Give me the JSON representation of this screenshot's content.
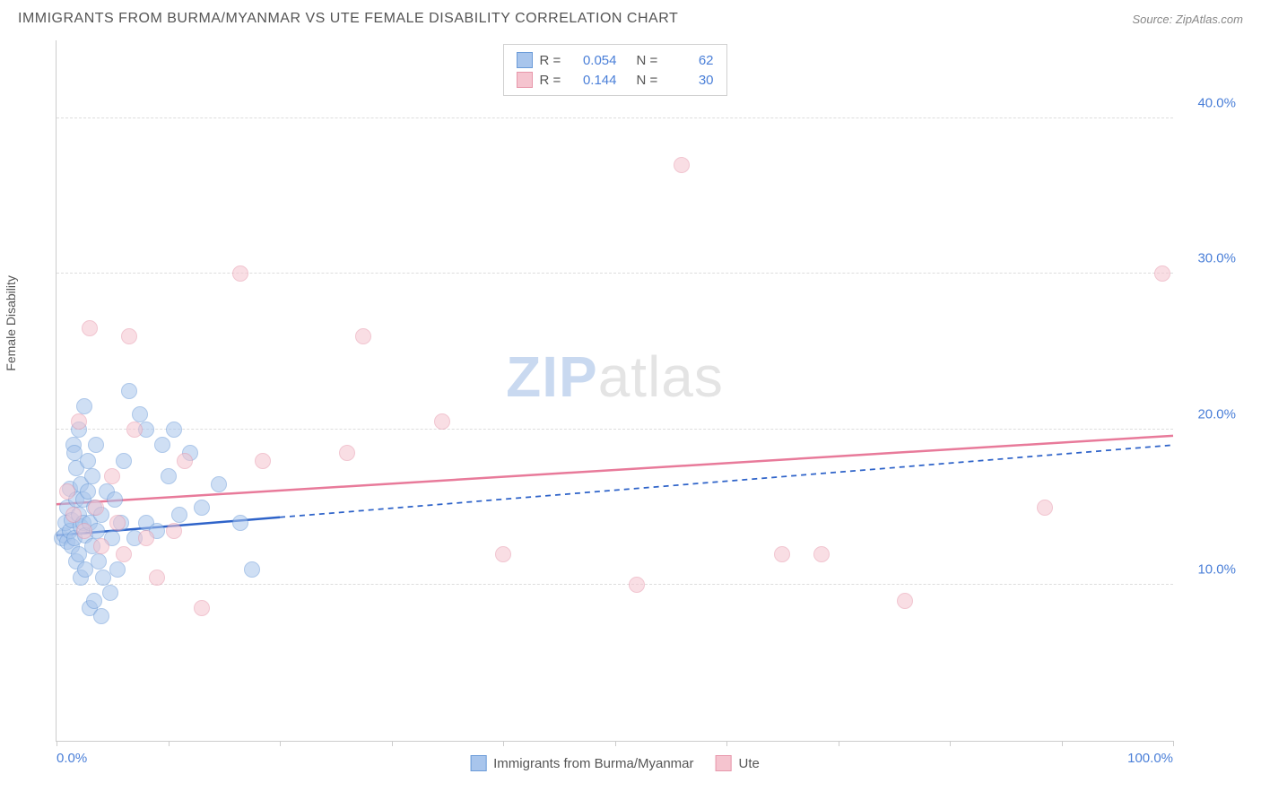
{
  "header": {
    "title": "IMMIGRANTS FROM BURMA/MYANMAR VS UTE FEMALE DISABILITY CORRELATION CHART",
    "source_prefix": "Source: ",
    "source_name": "ZipAtlas.com"
  },
  "chart": {
    "type": "scatter",
    "ylabel": "Female Disability",
    "background_color": "#ffffff",
    "grid_color": "#dddddd",
    "axis_color": "#cccccc",
    "tick_label_color": "#4a7fd8",
    "xlim": [
      0,
      100
    ],
    "ylim": [
      0,
      45
    ],
    "xticks": [
      {
        "pos": 0,
        "label": "0.0%"
      },
      {
        "pos": 10,
        "label": ""
      },
      {
        "pos": 20,
        "label": ""
      },
      {
        "pos": 30,
        "label": ""
      },
      {
        "pos": 40,
        "label": ""
      },
      {
        "pos": 50,
        "label": ""
      },
      {
        "pos": 60,
        "label": ""
      },
      {
        "pos": 70,
        "label": ""
      },
      {
        "pos": 80,
        "label": ""
      },
      {
        "pos": 90,
        "label": ""
      },
      {
        "pos": 100,
        "label": "100.0%"
      }
    ],
    "yticks": [
      {
        "pos": 10,
        "label": "10.0%"
      },
      {
        "pos": 20,
        "label": "20.0%"
      },
      {
        "pos": 30,
        "label": "30.0%"
      },
      {
        "pos": 40,
        "label": "40.0%"
      }
    ],
    "marker_radius": 9,
    "marker_opacity": 0.55,
    "series": [
      {
        "id": "burma",
        "label": "Immigrants from Burma/Myanmar",
        "fill_color": "#a8c5ec",
        "stroke_color": "#6b9bd8",
        "r_label": "R =",
        "r_value": "0.054",
        "n_label": "N =",
        "n_value": "62",
        "trend": {
          "color": "#2e63c9",
          "width": 2.5,
          "solid_until_x": 20,
          "y_at_x0": 13.2,
          "y_at_x100": 19.0
        },
        "points": [
          [
            0.5,
            13.0
          ],
          [
            0.7,
            13.2
          ],
          [
            0.8,
            14.0
          ],
          [
            1.0,
            12.8
          ],
          [
            1.0,
            15.0
          ],
          [
            1.2,
            13.5
          ],
          [
            1.2,
            16.2
          ],
          [
            1.4,
            12.5
          ],
          [
            1.4,
            14.2
          ],
          [
            1.5,
            19.0
          ],
          [
            1.6,
            13.0
          ],
          [
            1.6,
            18.5
          ],
          [
            1.8,
            11.5
          ],
          [
            1.8,
            15.5
          ],
          [
            1.8,
            17.5
          ],
          [
            2.0,
            12.0
          ],
          [
            2.0,
            14.5
          ],
          [
            2.0,
            20.0
          ],
          [
            2.2,
            10.5
          ],
          [
            2.2,
            13.8
          ],
          [
            2.2,
            16.5
          ],
          [
            2.4,
            14.0
          ],
          [
            2.4,
            15.5
          ],
          [
            2.5,
            21.5
          ],
          [
            2.6,
            13.2
          ],
          [
            2.6,
            11.0
          ],
          [
            2.8,
            16.0
          ],
          [
            2.8,
            18.0
          ],
          [
            3.0,
            14.0
          ],
          [
            3.0,
            8.5
          ],
          [
            3.2,
            12.5
          ],
          [
            3.2,
            17.0
          ],
          [
            3.4,
            15.0
          ],
          [
            3.4,
            9.0
          ],
          [
            3.5,
            19.0
          ],
          [
            3.6,
            13.5
          ],
          [
            3.8,
            11.5
          ],
          [
            4.0,
            14.5
          ],
          [
            4.0,
            8.0
          ],
          [
            4.2,
            10.5
          ],
          [
            4.5,
            16.0
          ],
          [
            4.8,
            9.5
          ],
          [
            5.0,
            13.0
          ],
          [
            5.2,
            15.5
          ],
          [
            5.5,
            11.0
          ],
          [
            5.8,
            14.0
          ],
          [
            6.0,
            18.0
          ],
          [
            6.5,
            22.5
          ],
          [
            7.0,
            13.0
          ],
          [
            7.5,
            21.0
          ],
          [
            8.0,
            14.0
          ],
          [
            8.0,
            20.0
          ],
          [
            9.0,
            13.5
          ],
          [
            9.5,
            19.0
          ],
          [
            10.0,
            17.0
          ],
          [
            10.5,
            20.0
          ],
          [
            11.0,
            14.5
          ],
          [
            12.0,
            18.5
          ],
          [
            13.0,
            15.0
          ],
          [
            14.5,
            16.5
          ],
          [
            16.5,
            14.0
          ],
          [
            17.5,
            11.0
          ]
        ]
      },
      {
        "id": "ute",
        "label": "Ute",
        "fill_color": "#f5c4cf",
        "stroke_color": "#e797ab",
        "r_label": "R =",
        "r_value": "0.144",
        "n_label": "N =",
        "n_value": "30",
        "trend": {
          "color": "#e87a9a",
          "width": 2.5,
          "solid_until_x": 100,
          "y_at_x0": 15.2,
          "y_at_x100": 19.6
        },
        "points": [
          [
            1.0,
            16.0
          ],
          [
            1.5,
            14.5
          ],
          [
            2.0,
            20.5
          ],
          [
            2.5,
            13.5
          ],
          [
            3.0,
            26.5
          ],
          [
            3.5,
            15.0
          ],
          [
            4.0,
            12.5
          ],
          [
            5.0,
            17.0
          ],
          [
            5.5,
            14.0
          ],
          [
            6.0,
            12.0
          ],
          [
            6.5,
            26.0
          ],
          [
            7.0,
            20.0
          ],
          [
            8.0,
            13.0
          ],
          [
            9.0,
            10.5
          ],
          [
            10.5,
            13.5
          ],
          [
            11.5,
            18.0
          ],
          [
            13.0,
            8.5
          ],
          [
            16.5,
            30.0
          ],
          [
            18.5,
            18.0
          ],
          [
            26.0,
            18.5
          ],
          [
            27.5,
            26.0
          ],
          [
            34.5,
            20.5
          ],
          [
            40.0,
            12.0
          ],
          [
            52.0,
            10.0
          ],
          [
            56.0,
            37.0
          ],
          [
            65.0,
            12.0
          ],
          [
            68.5,
            12.0
          ],
          [
            76.0,
            9.0
          ],
          [
            88.5,
            15.0
          ],
          [
            99.0,
            30.0
          ]
        ]
      }
    ],
    "legend_bottom": [
      {
        "series": "burma"
      },
      {
        "series": "ute"
      }
    ]
  },
  "watermark": {
    "bold": "ZIP",
    "rest": "atlas"
  }
}
